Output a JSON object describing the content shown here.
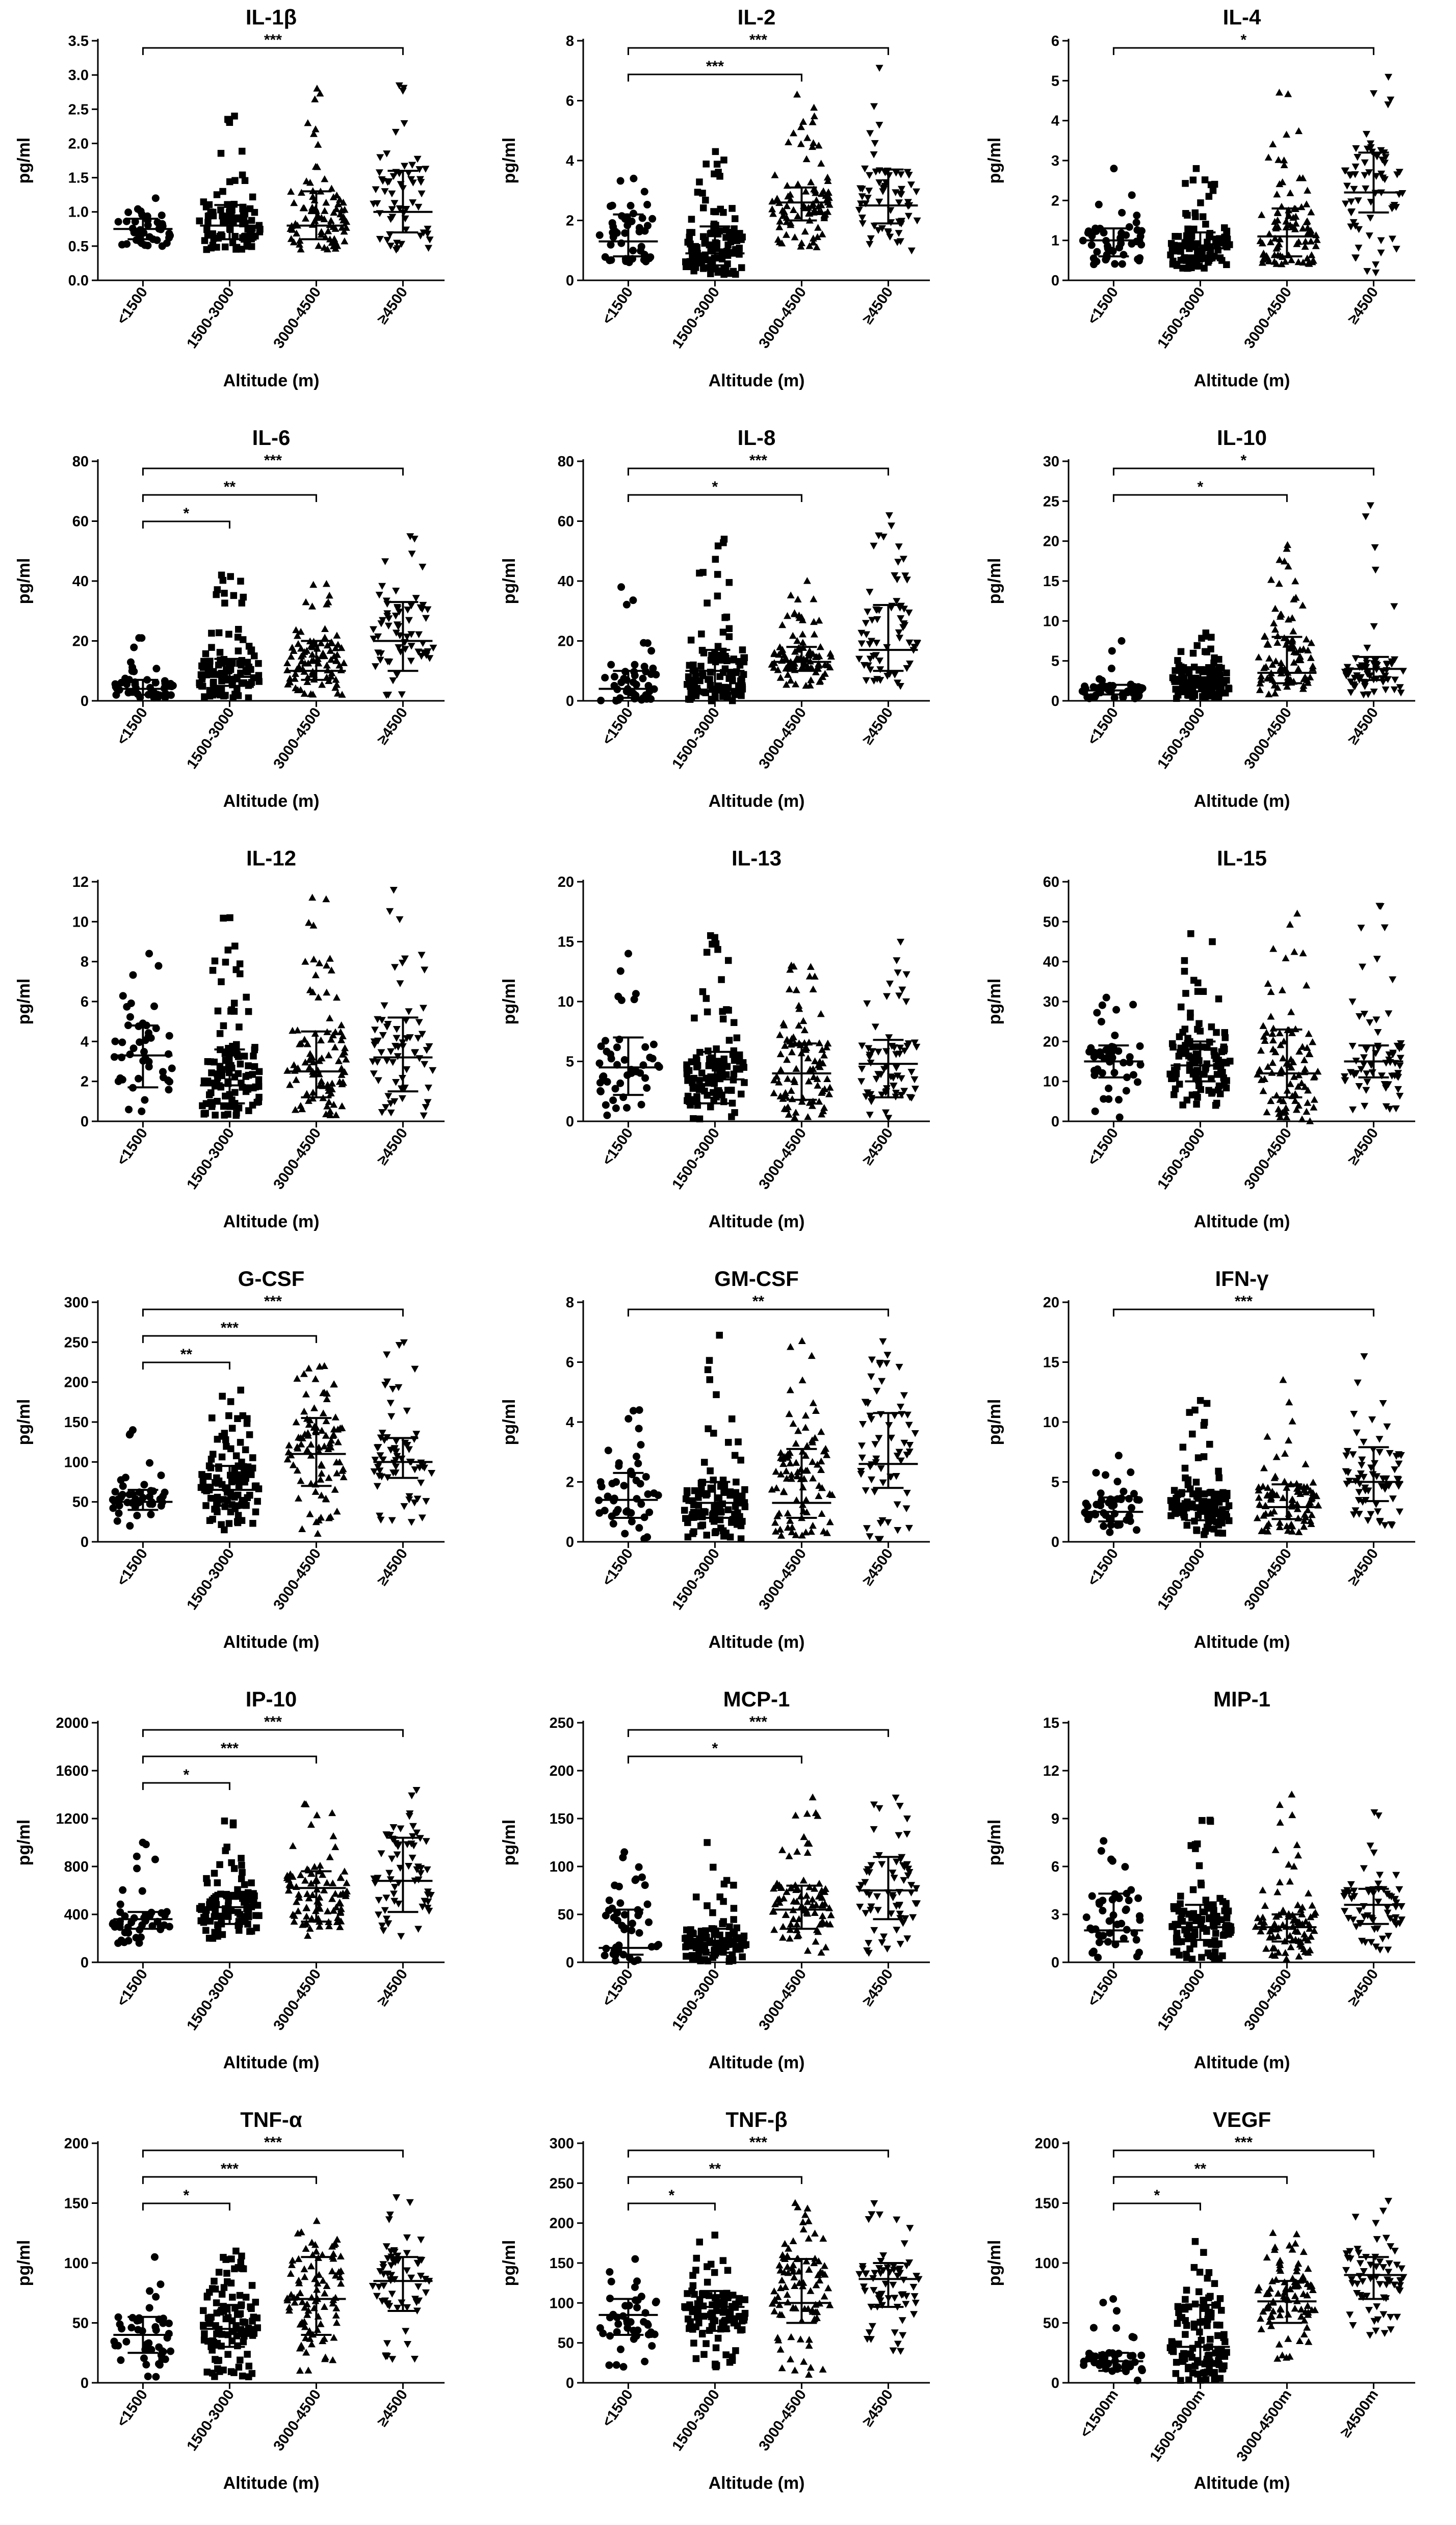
{
  "figure": {
    "ylabel": "pg/ml",
    "xlabel": "Altitude (m)",
    "categories": [
      "<1500",
      "1500-3000",
      "3000-4500",
      "≥4500"
    ],
    "marker_shapes": [
      "circle",
      "square",
      "triangle-up",
      "triangle-down"
    ],
    "colors": {
      "ink": "#000000",
      "background": "#ffffff"
    }
  },
  "chart_data": [
    {
      "type": "scatter",
      "title": "IL-1β",
      "categories": [
        "<1500",
        "1500-3000",
        "3000-4500",
        "≥4500"
      ],
      "xlabel": "Altitude (m)",
      "ylabel": "pg/ml",
      "ylim": [
        0,
        3.5
      ],
      "yticks": [
        "0.0",
        "0.5",
        "1.0",
        "1.5",
        "2.0",
        "2.5",
        "3.0",
        "3.5"
      ],
      "n": [
        40,
        95,
        85,
        60
      ],
      "median": [
        0.75,
        0.8,
        0.8,
        1.0
      ],
      "q1": [
        0.6,
        0.6,
        0.6,
        0.7
      ],
      "q3": [
        0.9,
        1.1,
        1.3,
        1.6
      ],
      "min": [
        0.5,
        0.45,
        0.45,
        0.45
      ],
      "max": [
        1.2,
        2.4,
        2.8,
        2.85
      ],
      "significance": [
        {
          "from": 0,
          "to": 3,
          "label": "***"
        }
      ]
    },
    {
      "type": "scatter",
      "title": "IL-2",
      "categories": [
        "<1500",
        "1500-3000",
        "3000-4500",
        "≥4500"
      ],
      "xlabel": "Altitude (m)",
      "ylabel": "pg/ml",
      "ylim": [
        0,
        8
      ],
      "yticks": [
        "0",
        "2",
        "4",
        "6",
        "8"
      ],
      "n": [
        45,
        110,
        90,
        65
      ],
      "median": [
        1.3,
        0.9,
        2.6,
        2.5
      ],
      "q1": [
        0.8,
        0.5,
        2.0,
        1.9
      ],
      "q3": [
        2.2,
        1.8,
        3.1,
        3.7
      ],
      "min": [
        0.6,
        0.2,
        1.1,
        1.0
      ],
      "max": [
        3.4,
        4.3,
        6.2,
        7.1
      ],
      "significance": [
        {
          "from": 0,
          "to": 3,
          "label": "***"
        },
        {
          "from": 0,
          "to": 2,
          "label": "***"
        }
      ]
    },
    {
      "type": "scatter",
      "title": "IL-4",
      "categories": [
        "<1500",
        "1500-3000",
        "3000-4500",
        "≥4500"
      ],
      "xlabel": "Altitude (m)",
      "ylabel": "pg/ml",
      "ylim": [
        0,
        6
      ],
      "yticks": [
        "0",
        "1",
        "2",
        "3",
        "4",
        "5",
        "6"
      ],
      "n": [
        45,
        110,
        90,
        65
      ],
      "median": [
        1.0,
        0.8,
        1.1,
        2.2
      ],
      "q1": [
        0.6,
        0.5,
        0.6,
        1.7
      ],
      "q3": [
        1.3,
        1.2,
        1.8,
        3.2
      ],
      "min": [
        0.4,
        0.3,
        0.4,
        0.2
      ],
      "max": [
        2.8,
        2.8,
        4.7,
        5.1
      ],
      "significance": [
        {
          "from": 0,
          "to": 3,
          "label": "*"
        }
      ]
    },
    {
      "type": "scatter",
      "title": "IL-6",
      "categories": [
        "<1500",
        "1500-3000",
        "3000-4500",
        "≥4500"
      ],
      "xlabel": "Altitude (m)",
      "ylabel": "pg/ml",
      "ylim": [
        0,
        80
      ],
      "yticks": [
        "0",
        "20",
        "40",
        "60",
        "80"
      ],
      "n": [
        45,
        110,
        90,
        65
      ],
      "median": [
        4,
        8,
        10,
        20
      ],
      "q1": [
        2,
        5,
        7,
        10
      ],
      "q3": [
        7,
        14,
        20,
        33
      ],
      "min": [
        1,
        1,
        2,
        2
      ],
      "max": [
        21,
        42,
        39,
        55
      ],
      "significance": [
        {
          "from": 0,
          "to": 3,
          "label": "***"
        },
        {
          "from": 0,
          "to": 2,
          "label": "**"
        },
        {
          "from": 0,
          "to": 1,
          "label": "*"
        }
      ]
    },
    {
      "type": "scatter",
      "title": "IL-8",
      "categories": [
        "<1500",
        "1500-3000",
        "3000-4500",
        "≥4500"
      ],
      "xlabel": "Altitude (m)",
      "ylabel": "pg/ml",
      "ylim": [
        0,
        80
      ],
      "yticks": [
        "0",
        "20",
        "40",
        "60",
        "80"
      ],
      "n": [
        45,
        110,
        90,
        65
      ],
      "median": [
        4,
        10,
        13,
        17
      ],
      "q1": [
        1,
        3,
        10,
        10
      ],
      "q3": [
        10,
        17,
        18,
        32
      ],
      "min": [
        0,
        0,
        5,
        5
      ],
      "max": [
        38,
        54,
        40,
        62
      ],
      "significance": [
        {
          "from": 0,
          "to": 3,
          "label": "***"
        },
        {
          "from": 0,
          "to": 2,
          "label": "*"
        }
      ]
    },
    {
      "type": "scatter",
      "title": "IL-10",
      "categories": [
        "<1500",
        "1500-3000",
        "3000-4500",
        "≥4500"
      ],
      "xlabel": "Altitude (m)",
      "ylabel": "pg/ml",
      "ylim": [
        0,
        30
      ],
      "yticks": [
        "0",
        "5",
        "10",
        "15",
        "20",
        "25",
        "30"
      ],
      "n": [
        45,
        110,
        90,
        65
      ],
      "median": [
        1.3,
        2.4,
        3.5,
        4.0
      ],
      "q1": [
        0.8,
        1.2,
        2.2,
        2.6
      ],
      "q3": [
        2.0,
        4.2,
        8.0,
        5.5
      ],
      "min": [
        0.3,
        0.3,
        0.8,
        0.8
      ],
      "max": [
        7.5,
        8.5,
        19.5,
        24.5
      ],
      "significance": [
        {
          "from": 0,
          "to": 3,
          "label": "*"
        },
        {
          "from": 0,
          "to": 2,
          "label": "*"
        }
      ]
    },
    {
      "type": "scatter",
      "title": "IL-12",
      "categories": [
        "<1500",
        "1500-3000",
        "3000-4500",
        "≥4500"
      ],
      "xlabel": "Altitude (m)",
      "ylabel": "pg/ml",
      "ylim": [
        0,
        12
      ],
      "yticks": [
        "0",
        "2",
        "4",
        "6",
        "8",
        "10",
        "12"
      ],
      "n": [
        45,
        110,
        90,
        65
      ],
      "median": [
        3.3,
        1.8,
        2.5,
        3.2
      ],
      "q1": [
        1.7,
        0.9,
        1.2,
        1.5
      ],
      "q3": [
        4.8,
        3.6,
        4.5,
        5.2
      ],
      "min": [
        0.5,
        0.3,
        0.3,
        0.3
      ],
      "max": [
        8.4,
        10.2,
        11.2,
        11.6
      ],
      "significance": []
    },
    {
      "type": "scatter",
      "title": "IL-13",
      "categories": [
        "<1500",
        "1500-3000",
        "3000-4500",
        "≥4500"
      ],
      "xlabel": "Altitude (m)",
      "ylabel": "pg/ml",
      "ylim": [
        0,
        20
      ],
      "yticks": [
        "0",
        "5",
        "10",
        "15",
        "20"
      ],
      "n": [
        45,
        110,
        90,
        65
      ],
      "median": [
        4.5,
        3.5,
        4.0,
        4.8
      ],
      "q1": [
        2.2,
        1.5,
        1.8,
        2.0
      ],
      "q3": [
        7.0,
        5.8,
        6.5,
        6.8
      ],
      "min": [
        0.5,
        0.2,
        0.3,
        0.3
      ],
      "max": [
        14,
        15.5,
        13,
        15
      ],
      "significance": []
    },
    {
      "type": "scatter",
      "title": "IL-15",
      "categories": [
        "<1500",
        "1500-3000",
        "3000-4500",
        "≥4500"
      ],
      "xlabel": "Altitude (m)",
      "ylabel": "pg/ml",
      "ylim": [
        0,
        60
      ],
      "yticks": [
        "0",
        "10",
        "20",
        "30",
        "40",
        "50",
        "60"
      ],
      "n": [
        45,
        110,
        90,
        65
      ],
      "median": [
        15,
        14,
        12,
        15
      ],
      "q1": [
        11,
        10,
        6,
        11
      ],
      "q3": [
        19,
        20,
        23,
        19
      ],
      "min": [
        1,
        4,
        0,
        3
      ],
      "max": [
        31,
        47,
        52,
        54
      ],
      "significance": []
    },
    {
      "type": "scatter",
      "title": "G-CSF",
      "categories": [
        "<1500",
        "1500-3000",
        "3000-4500",
        "≥4500"
      ],
      "xlabel": "Altitude (m)",
      "ylabel": "pg/ml",
      "ylim": [
        0,
        300
      ],
      "yticks": [
        "0",
        "50",
        "100",
        "150",
        "200",
        "250",
        "300"
      ],
      "n": [
        45,
        110,
        90,
        65
      ],
      "median": [
        50,
        65,
        110,
        100
      ],
      "q1": [
        40,
        45,
        70,
        80
      ],
      "q3": [
        65,
        95,
        155,
        130
      ],
      "min": [
        20,
        15,
        10,
        25
      ],
      "max": [
        140,
        190,
        220,
        250
      ],
      "significance": [
        {
          "from": 0,
          "to": 3,
          "label": "***"
        },
        {
          "from": 0,
          "to": 2,
          "label": "***"
        },
        {
          "from": 0,
          "to": 1,
          "label": "**"
        }
      ]
    },
    {
      "type": "scatter",
      "title": "GM-CSF",
      "categories": [
        "<1500",
        "1500-3000",
        "3000-4500",
        "≥4500"
      ],
      "xlabel": "Altitude (m)",
      "ylabel": "pg/ml",
      "ylim": [
        0,
        8
      ],
      "yticks": [
        "0",
        "2",
        "4",
        "6",
        "8"
      ],
      "n": [
        45,
        110,
        90,
        65
      ],
      "median": [
        1.4,
        1.3,
        1.3,
        2.6
      ],
      "q1": [
        0.8,
        0.8,
        0.8,
        1.8
      ],
      "q3": [
        2.3,
        2.0,
        3.1,
        4.3
      ],
      "min": [
        0.1,
        0.1,
        0.2,
        0.1
      ],
      "max": [
        4.4,
        6.9,
        6.7,
        6.7
      ],
      "significance": [
        {
          "from": 0,
          "to": 3,
          "label": "**"
        }
      ]
    },
    {
      "type": "scatter",
      "title": "IFN-γ",
      "categories": [
        "<1500",
        "1500-3000",
        "3000-4500",
        "≥4500"
      ],
      "xlabel": "Altitude (m)",
      "ylabel": "pg/ml",
      "ylim": [
        0,
        20
      ],
      "yticks": [
        "0",
        "5",
        "10",
        "15",
        "20"
      ],
      "n": [
        45,
        110,
        90,
        65
      ],
      "median": [
        2.5,
        2.7,
        2.9,
        5.0
      ],
      "q1": [
        1.7,
        1.8,
        1.9,
        3.4
      ],
      "q3": [
        3.7,
        4.2,
        4.8,
        7.9
      ],
      "min": [
        0.8,
        0.6,
        0.8,
        1.4
      ],
      "max": [
        7.2,
        11.8,
        13.5,
        15.5
      ],
      "significance": [
        {
          "from": 0,
          "to": 3,
          "label": "***"
        }
      ]
    },
    {
      "type": "scatter",
      "title": "IP-10",
      "categories": [
        "<1500",
        "1500-3000",
        "3000-4500",
        "≥4500"
      ],
      "xlabel": "Altitude (m)",
      "ylabel": "pg/ml",
      "ylim": [
        0,
        2000
      ],
      "yticks": [
        "0",
        "400",
        "800",
        "1200",
        "1600",
        "2000"
      ],
      "n": [
        45,
        110,
        90,
        65
      ],
      "median": [
        360,
        460,
        620,
        680
      ],
      "q1": [
        280,
        320,
        340,
        420
      ],
      "q3": [
        420,
        580,
        760,
        1040
      ],
      "min": [
        160,
        200,
        220,
        220
      ],
      "max": [
        1000,
        1180,
        1320,
        1440
      ],
      "significance": [
        {
          "from": 0,
          "to": 3,
          "label": "***"
        },
        {
          "from": 0,
          "to": 2,
          "label": "***"
        },
        {
          "from": 0,
          "to": 1,
          "label": "*"
        }
      ]
    },
    {
      "type": "scatter",
      "title": "MCP-1",
      "categories": [
        "<1500",
        "1500-3000",
        "3000-4500",
        "≥4500"
      ],
      "xlabel": "Altitude (m)",
      "ylabel": "pg/ml",
      "ylim": [
        0,
        250
      ],
      "yticks": [
        "0",
        "50",
        "100",
        "150",
        "200",
        "250"
      ],
      "n": [
        45,
        110,
        90,
        65
      ],
      "median": [
        15,
        18,
        55,
        75
      ],
      "q1": [
        8,
        10,
        35,
        45
      ],
      "q3": [
        55,
        35,
        80,
        110
      ],
      "min": [
        1,
        1,
        10,
        10
      ],
      "max": [
        115,
        125,
        172,
        172
      ],
      "significance": [
        {
          "from": 0,
          "to": 3,
          "label": "***"
        },
        {
          "from": 0,
          "to": 2,
          "label": "*"
        }
      ]
    },
    {
      "type": "scatter",
      "title": "MIP-1",
      "categories": [
        "<1500",
        "1500-3000",
        "3000-4500",
        "≥4500"
      ],
      "xlabel": "Altitude (m)",
      "ylabel": "pg/ml",
      "ylim": [
        0,
        15
      ],
      "yticks": [
        "0",
        "3",
        "6",
        "9",
        "12",
        "15"
      ],
      "n": [
        45,
        110,
        90,
        65
      ],
      "median": [
        2.0,
        2.2,
        2.2,
        3.6
      ],
      "q1": [
        1.3,
        1.4,
        1.3,
        2.4
      ],
      "q3": [
        4.3,
        3.6,
        3.0,
        4.6
      ],
      "min": [
        0.3,
        0.2,
        0.2,
        0.8
      ],
      "max": [
        7.6,
        8.9,
        10.5,
        9.4
      ],
      "significance": []
    },
    {
      "type": "scatter",
      "title": "TNF-α",
      "categories": [
        "<1500",
        "1500-3000",
        "3000-4500",
        "≥4500"
      ],
      "xlabel": "Altitude (m)",
      "ylabel": "pg/ml",
      "ylim": [
        0,
        200
      ],
      "yticks": [
        "0",
        "50",
        "100",
        "150",
        "200"
      ],
      "n": [
        45,
        110,
        90,
        65
      ],
      "median": [
        40,
        45,
        70,
        85
      ],
      "q1": [
        25,
        30,
        40,
        60
      ],
      "q3": [
        55,
        65,
        105,
        105
      ],
      "min": [
        5,
        5,
        10,
        20
      ],
      "max": [
        105,
        110,
        135,
        155
      ],
      "significance": [
        {
          "from": 0,
          "to": 3,
          "label": "***"
        },
        {
          "from": 0,
          "to": 2,
          "label": "***"
        },
        {
          "from": 0,
          "to": 1,
          "label": "*"
        }
      ]
    },
    {
      "type": "scatter",
      "title": "TNF-β",
      "categories": [
        "<1500",
        "1500-3000",
        "3000-4500",
        "≥4500"
      ],
      "xlabel": "Altitude (m)",
      "ylabel": "pg/ml",
      "ylim": [
        0,
        300
      ],
      "yticks": [
        "0",
        "50",
        "100",
        "150",
        "200",
        "250",
        "300"
      ],
      "n": [
        45,
        110,
        90,
        65
      ],
      "median": [
        85,
        95,
        100,
        130
      ],
      "q1": [
        60,
        65,
        75,
        95
      ],
      "q3": [
        105,
        115,
        155,
        150
      ],
      "min": [
        20,
        20,
        10,
        40
      ],
      "max": [
        155,
        185,
        225,
        225
      ],
      "significance": [
        {
          "from": 0,
          "to": 3,
          "label": "***"
        },
        {
          "from": 0,
          "to": 2,
          "label": "**"
        },
        {
          "from": 0,
          "to": 1,
          "label": "*"
        }
      ]
    },
    {
      "type": "scatter",
      "title": "VEGF",
      "categories": [
        "<1500m",
        "1500-3000m",
        "3000-4500m",
        "≥4500m"
      ],
      "xlabel": "Altitude (m)",
      "ylabel": "pg/ml",
      "ylim": [
        0,
        200
      ],
      "yticks": [
        "0",
        "50",
        "100",
        "150",
        "200"
      ],
      "n": [
        45,
        110,
        90,
        65
      ],
      "median": [
        18,
        30,
        68,
        90
      ],
      "q1": [
        10,
        15,
        50,
        70
      ],
      "q3": [
        25,
        65,
        85,
        105
      ],
      "min": [
        2,
        2,
        20,
        40
      ],
      "max": [
        70,
        118,
        125,
        152
      ],
      "significance": [
        {
          "from": 0,
          "to": 3,
          "label": "***"
        },
        {
          "from": 0,
          "to": 2,
          "label": "**"
        },
        {
          "from": 0,
          "to": 1,
          "label": "*"
        }
      ]
    }
  ]
}
